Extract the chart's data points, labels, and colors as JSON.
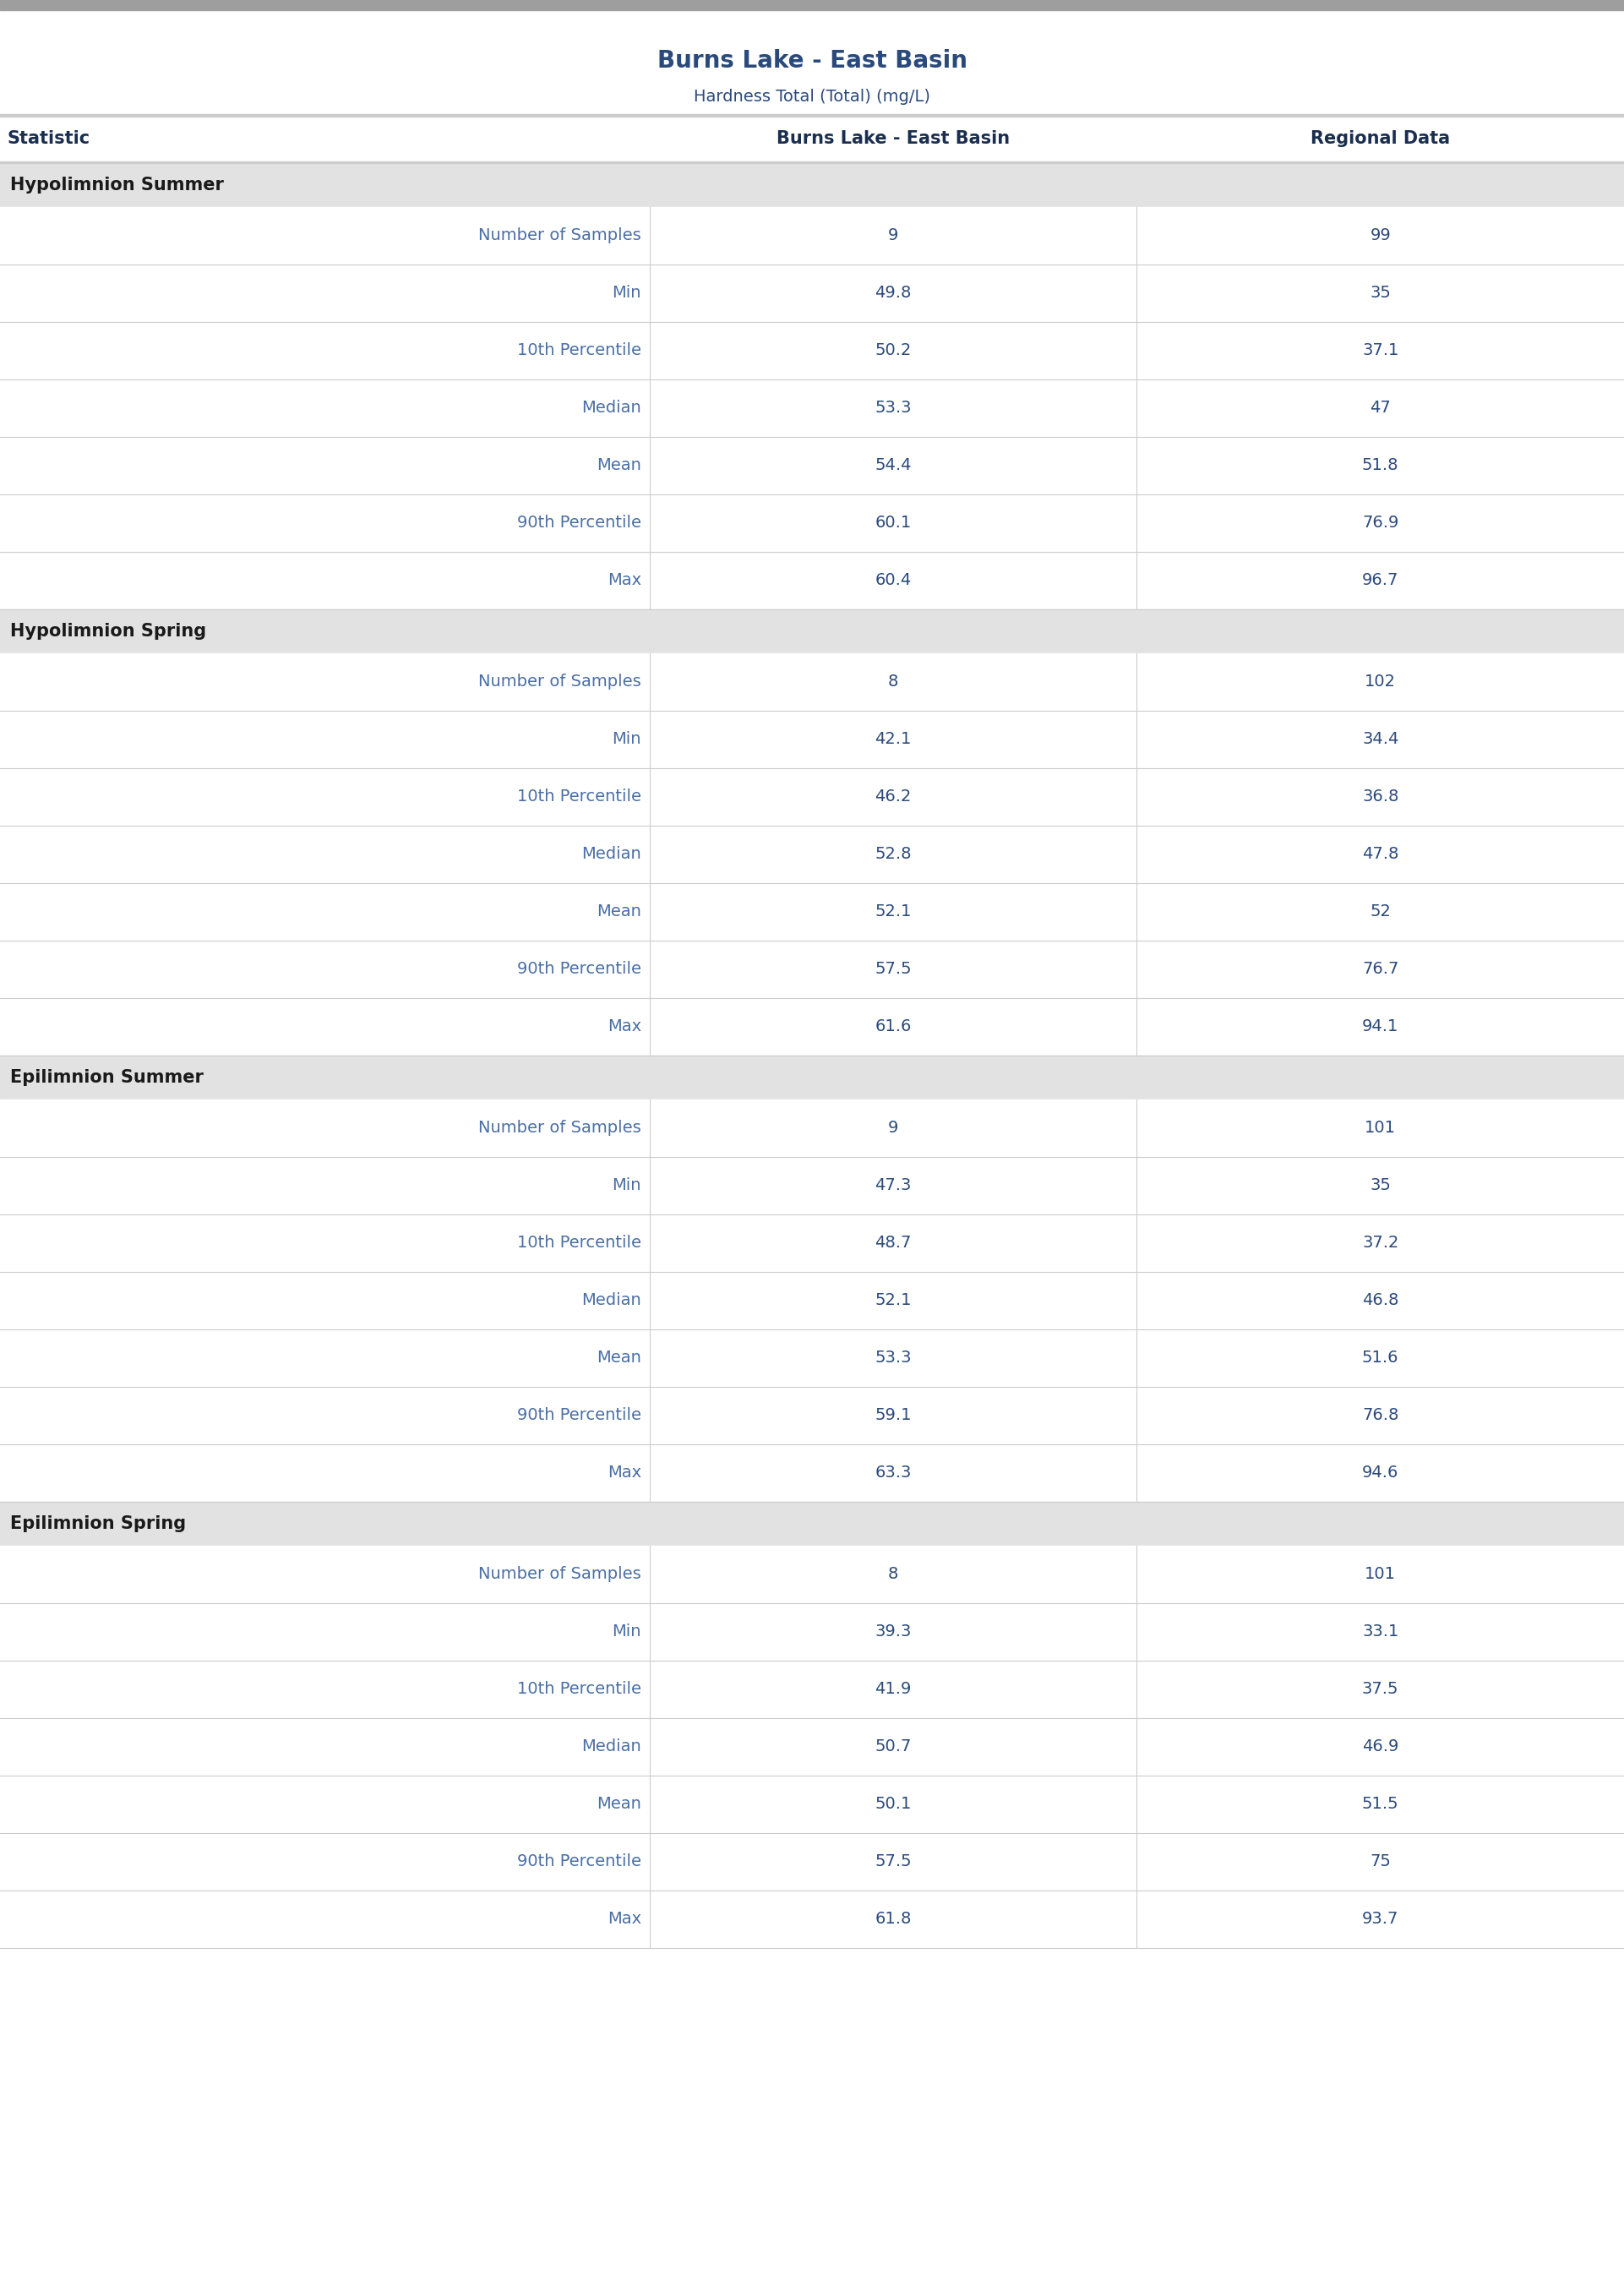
{
  "title": "Burns Lake - East Basin",
  "subtitle": "Hardness Total (Total) (mg/L)",
  "col_headers": [
    "Statistic",
    "Burns Lake - East Basin",
    "Regional Data"
  ],
  "sections": [
    {
      "name": "Hypolimnion Summer",
      "rows": [
        [
          "Number of Samples",
          "9",
          "99"
        ],
        [
          "Min",
          "49.8",
          "35"
        ],
        [
          "10th Percentile",
          "50.2",
          "37.1"
        ],
        [
          "Median",
          "53.3",
          "47"
        ],
        [
          "Mean",
          "54.4",
          "51.8"
        ],
        [
          "90th Percentile",
          "60.1",
          "76.9"
        ],
        [
          "Max",
          "60.4",
          "96.7"
        ]
      ]
    },
    {
      "name": "Hypolimnion Spring",
      "rows": [
        [
          "Number of Samples",
          "8",
          "102"
        ],
        [
          "Min",
          "42.1",
          "34.4"
        ],
        [
          "10th Percentile",
          "46.2",
          "36.8"
        ],
        [
          "Median",
          "52.8",
          "47.8"
        ],
        [
          "Mean",
          "52.1",
          "52"
        ],
        [
          "90th Percentile",
          "57.5",
          "76.7"
        ],
        [
          "Max",
          "61.6",
          "94.1"
        ]
      ]
    },
    {
      "name": "Epilimnion Summer",
      "rows": [
        [
          "Number of Samples",
          "9",
          "101"
        ],
        [
          "Min",
          "47.3",
          "35"
        ],
        [
          "10th Percentile",
          "48.7",
          "37.2"
        ],
        [
          "Median",
          "52.1",
          "46.8"
        ],
        [
          "Mean",
          "53.3",
          "51.6"
        ],
        [
          "90th Percentile",
          "59.1",
          "76.8"
        ],
        [
          "Max",
          "63.3",
          "94.6"
        ]
      ]
    },
    {
      "name": "Epilimnion Spring",
      "rows": [
        [
          "Number of Samples",
          "8",
          "101"
        ],
        [
          "Min",
          "39.3",
          "33.1"
        ],
        [
          "10th Percentile",
          "41.9",
          "37.5"
        ],
        [
          "Median",
          "50.7",
          "46.9"
        ],
        [
          "Mean",
          "50.1",
          "51.5"
        ],
        [
          "90th Percentile",
          "57.5",
          "75"
        ],
        [
          "Max",
          "61.8",
          "93.7"
        ]
      ]
    }
  ],
  "title_color": "#2b4a7c",
  "subtitle_color": "#2b4a7c",
  "header_text_color": "#1a2e50",
  "section_header_bg": "#e2e2e2",
  "section_header_text_color": "#1a1a1a",
  "row_stat_color": "#4a6fa5",
  "data_text_color": "#2b4a7c",
  "row_bg_white": "#ffffff",
  "divider_color": "#cccccc",
  "top_bar_color": "#9e9e9e",
  "col_split1": 0.4,
  "col_split2": 0.7,
  "title_fontsize": 20,
  "subtitle_fontsize": 14,
  "header_fontsize": 15,
  "section_fontsize": 15,
  "row_fontsize": 14
}
